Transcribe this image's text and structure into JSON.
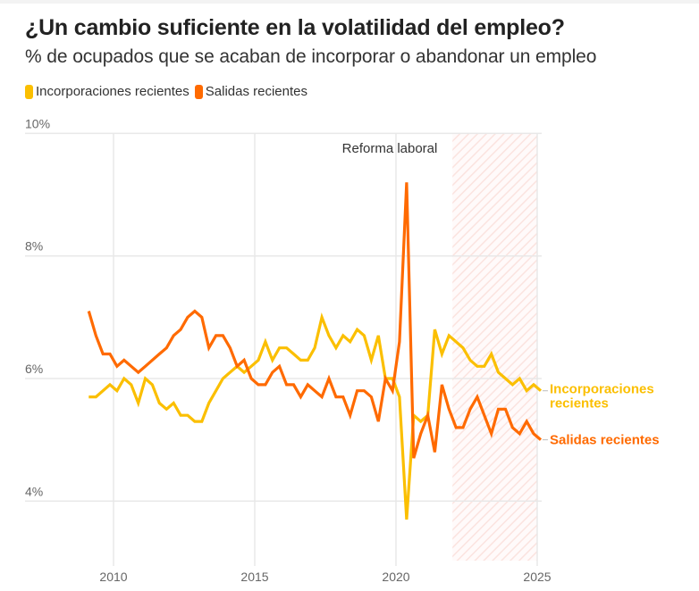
{
  "title": "¿Un cambio suficiente en la volatilidad del empleo?",
  "subtitle": "% de ocupados que se acaban de incorporar o abandonar un empleo",
  "legend": [
    {
      "label": "Incorporaciones recientes",
      "color": "#fbbf00"
    },
    {
      "label": "Salidas recientes",
      "color": "#ff6a00"
    }
  ],
  "chart_data": {
    "type": "line",
    "title": "¿Un cambio suficiente en la volatilidad del empleo?",
    "subtitle": "% de ocupados que se acaban de incorporar o abandonar un empleo",
    "xlabel": "",
    "ylabel": "",
    "frequency": "quarterly",
    "x_start": "2009 Q1",
    "x_end": "2025 Q1",
    "xlim": [
      2008.3,
      2025.3
    ],
    "ylim": [
      3.3,
      10
    ],
    "x_ticks": [
      2010,
      2015,
      2020,
      2025
    ],
    "x_tick_labels": [
      "2010",
      "2015",
      "2020",
      "2025"
    ],
    "y_ticks": [
      4,
      6,
      8,
      10
    ],
    "y_tick_labels": [
      "4%",
      "6%",
      "8%",
      "10%"
    ],
    "grid": true,
    "legend_position": "top-left",
    "annotations": [
      {
        "text": "Reforma laboral",
        "type": "shaded-region",
        "x_from": 2022.0,
        "x_to": 2025.0
      }
    ],
    "series": [
      {
        "name": "Incorporaciones recientes",
        "end_label": [
          "Incorporaciones",
          "recientes"
        ],
        "color": "#fbbf00",
        "values": [
          5.7,
          5.7,
          5.8,
          5.9,
          5.8,
          6.0,
          5.9,
          5.6,
          6.0,
          5.9,
          5.6,
          5.5,
          5.6,
          5.4,
          5.4,
          5.3,
          5.3,
          5.6,
          5.8,
          6.0,
          6.1,
          6.2,
          6.1,
          6.2,
          6.3,
          6.6,
          6.3,
          6.5,
          6.5,
          6.4,
          6.3,
          6.3,
          6.5,
          7.0,
          6.7,
          6.5,
          6.7,
          6.6,
          6.8,
          6.7,
          6.3,
          6.7,
          6.0,
          6.0,
          5.7,
          3.7,
          5.4,
          5.3,
          5.4,
          6.8,
          6.4,
          6.7,
          6.6,
          6.5,
          6.3,
          6.2,
          6.2,
          6.4,
          6.1,
          6.0,
          5.9,
          6.0,
          5.8,
          5.9,
          5.8
        ]
      },
      {
        "name": "Salidas recientes",
        "end_label": [
          "Salidas recientes"
        ],
        "color": "#ff6a00",
        "values": [
          7.1,
          6.7,
          6.4,
          6.4,
          6.2,
          6.3,
          6.2,
          6.1,
          6.2,
          6.3,
          6.4,
          6.5,
          6.7,
          6.8,
          7.0,
          7.1,
          7.0,
          6.5,
          6.7,
          6.7,
          6.5,
          6.2,
          6.3,
          6.0,
          5.9,
          5.9,
          6.1,
          6.2,
          5.9,
          5.9,
          5.7,
          5.9,
          5.8,
          5.7,
          6.0,
          5.7,
          5.7,
          5.4,
          5.8,
          5.8,
          5.7,
          5.3,
          6.0,
          5.8,
          6.6,
          9.2,
          4.7,
          5.1,
          5.4,
          4.8,
          5.9,
          5.5,
          5.2,
          5.2,
          5.5,
          5.7,
          5.4,
          5.1,
          5.5,
          5.5,
          5.2,
          5.1,
          5.3,
          5.1,
          5.0
        ]
      }
    ]
  }
}
